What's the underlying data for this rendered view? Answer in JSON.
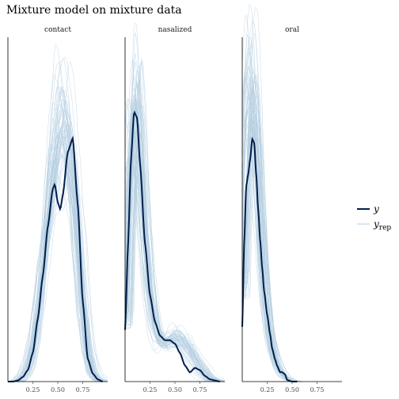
{
  "chart_data": {
    "type": "line",
    "title": "Mixture model on mixture data",
    "xlabel": "",
    "ylabel": "",
    "x_range": [
      0,
      1
    ],
    "x_ticks": [
      "0.25",
      "0.50",
      "0.75"
    ],
    "grid": false,
    "legend_position": "right",
    "legend": [
      {
        "key": "y",
        "label": "y",
        "sub": "",
        "color": "#011f4b"
      },
      {
        "key": "yrep",
        "label": "y",
        "sub": "rep",
        "color": "#b3cde0"
      }
    ],
    "n_replicates": 60,
    "panels": [
      {
        "name": "contact",
        "ymax": 3.0,
        "observed": {
          "x": [
            0.0,
            0.05,
            0.1,
            0.15,
            0.2,
            0.25,
            0.3,
            0.35,
            0.4,
            0.45,
            0.47,
            0.5,
            0.525,
            0.55,
            0.6,
            0.65,
            0.7,
            0.75,
            0.8,
            0.85,
            0.9,
            0.95
          ],
          "y": [
            0.0,
            0.0,
            0.01,
            0.04,
            0.1,
            0.25,
            0.55,
            0.92,
            1.35,
            1.68,
            1.72,
            1.56,
            1.5,
            1.62,
            2.0,
            2.12,
            1.55,
            0.7,
            0.2,
            0.07,
            0.02,
            0.0
          ]
        },
        "replicate_template": {
          "x": [
            0.0,
            0.05,
            0.1,
            0.15,
            0.2,
            0.25,
            0.3,
            0.35,
            0.4,
            0.45,
            0.5,
            0.55,
            0.6,
            0.65,
            0.7,
            0.75,
            0.8,
            0.85,
            0.9,
            0.95
          ],
          "y": [
            0.0,
            0.0,
            0.01,
            0.05,
            0.14,
            0.33,
            0.63,
            1.03,
            1.45,
            1.83,
            2.1,
            2.2,
            2.05,
            1.7,
            1.17,
            0.62,
            0.24,
            0.07,
            0.02,
            0.0
          ]
        }
      },
      {
        "name": "nasalized",
        "ymax": 3.0,
        "observed": {
          "x": [
            0.0,
            0.03,
            0.06,
            0.09,
            0.12,
            0.15,
            0.2,
            0.25,
            0.3,
            0.35,
            0.4,
            0.45,
            0.5,
            0.55,
            0.6,
            0.65,
            0.7,
            0.75,
            0.8,
            0.85,
            0.9,
            0.95
          ],
          "y": [
            0.45,
            1.2,
            1.95,
            2.35,
            2.3,
            1.9,
            1.2,
            0.75,
            0.52,
            0.4,
            0.36,
            0.36,
            0.33,
            0.25,
            0.14,
            0.08,
            0.12,
            0.1,
            0.05,
            0.02,
            0.01,
            0.0
          ]
        },
        "replicate_template": {
          "x": [
            0.0,
            0.03,
            0.06,
            0.09,
            0.12,
            0.15,
            0.2,
            0.25,
            0.3,
            0.35,
            0.4,
            0.45,
            0.5,
            0.55,
            0.6,
            0.65,
            0.7,
            0.75,
            0.8,
            0.85,
            0.9,
            0.95
          ],
          "y": [
            0.55,
            1.4,
            2.1,
            2.4,
            2.3,
            1.95,
            1.25,
            0.75,
            0.48,
            0.37,
            0.34,
            0.36,
            0.38,
            0.37,
            0.33,
            0.27,
            0.2,
            0.13,
            0.07,
            0.03,
            0.01,
            0.0
          ]
        }
      },
      {
        "name": "oral",
        "ymax": 4.4,
        "observed": {
          "x": [
            0.0,
            0.02,
            0.04,
            0.06,
            0.08,
            0.1,
            0.12,
            0.14,
            0.16,
            0.18,
            0.2,
            0.22,
            0.25,
            0.28,
            0.3,
            0.33,
            0.35,
            0.38,
            0.4,
            0.43,
            0.45,
            0.5,
            0.55
          ],
          "y": [
            0.7,
            1.8,
            2.5,
            2.65,
            2.85,
            3.1,
            3.05,
            2.65,
            2.2,
            1.8,
            1.45,
            1.15,
            0.85,
            0.6,
            0.42,
            0.28,
            0.2,
            0.12,
            0.12,
            0.09,
            0.02,
            0.0,
            0.0
          ]
        },
        "replicate_template": {
          "x": [
            0.0,
            0.02,
            0.04,
            0.06,
            0.08,
            0.1,
            0.12,
            0.14,
            0.16,
            0.18,
            0.2,
            0.22,
            0.25,
            0.28,
            0.3,
            0.33,
            0.35,
            0.38,
            0.4,
            0.43,
            0.45,
            0.5,
            0.55
          ],
          "y": [
            1.2,
            2.2,
            2.9,
            3.3,
            3.5,
            3.55,
            3.45,
            3.15,
            2.7,
            2.2,
            1.75,
            1.35,
            0.92,
            0.6,
            0.45,
            0.3,
            0.22,
            0.14,
            0.1,
            0.06,
            0.04,
            0.01,
            0.0
          ]
        }
      }
    ]
  }
}
